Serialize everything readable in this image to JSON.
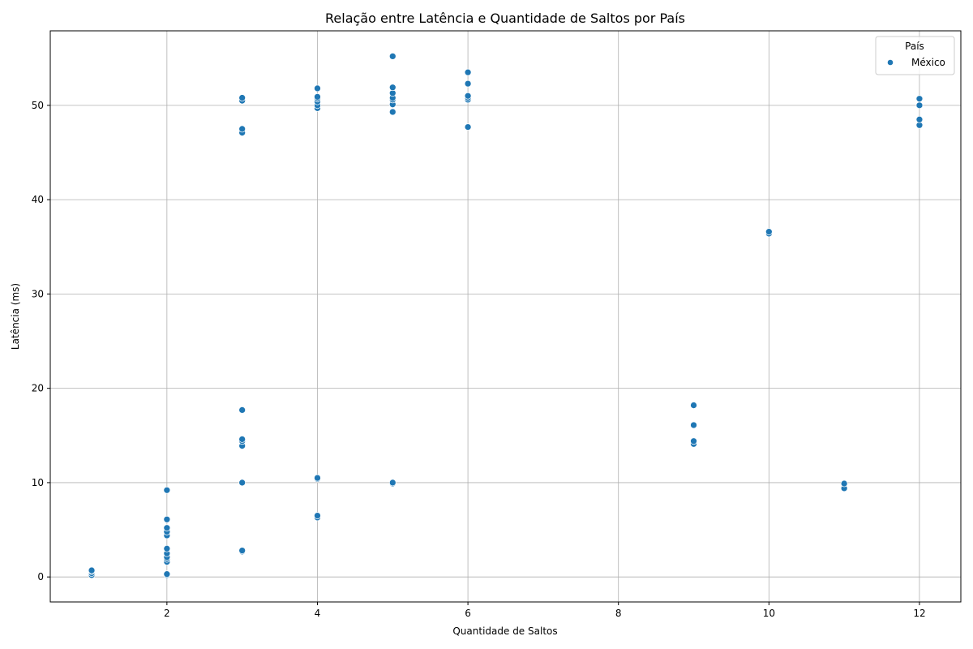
{
  "chart_data": {
    "type": "scatter",
    "title": "Relação entre Latência e Quantidade de Saltos por País",
    "xlabel": "Quantidade de Saltos",
    "ylabel": "Latência (ms)",
    "xlim": [
      0.45,
      12.55
    ],
    "ylim": [
      -2.65,
      57.9
    ],
    "xticks": [
      2,
      4,
      6,
      8,
      10,
      12
    ],
    "yticks": [
      0,
      10,
      20,
      30,
      40,
      50
    ],
    "grid": true,
    "legend": {
      "title": "País",
      "placement": "top-right"
    },
    "colors": {
      "point": "#1f77b4",
      "grid": "#b0b0b0"
    },
    "series": [
      {
        "name": "México",
        "points": [
          [
            1,
            0.2
          ],
          [
            1,
            0.4
          ],
          [
            1,
            0.6
          ],
          [
            1,
            0.7
          ],
          [
            2,
            0.2
          ],
          [
            2,
            0.3
          ],
          [
            2,
            1.6
          ],
          [
            2,
            1.9
          ],
          [
            2,
            2.1
          ],
          [
            2,
            2.5
          ],
          [
            2,
            3.0
          ],
          [
            2,
            4.4
          ],
          [
            2,
            4.8
          ],
          [
            2,
            5.2
          ],
          [
            2,
            6.1
          ],
          [
            2,
            9.2
          ],
          [
            3,
            2.7
          ],
          [
            3,
            2.8
          ],
          [
            3,
            10.0
          ],
          [
            3,
            13.9
          ],
          [
            3,
            14.4
          ],
          [
            3,
            14.6
          ],
          [
            3,
            17.7
          ],
          [
            3,
            47.1
          ],
          [
            3,
            47.5
          ],
          [
            3,
            50.5
          ],
          [
            3,
            50.8
          ],
          [
            4,
            6.3
          ],
          [
            4,
            6.5
          ],
          [
            4,
            10.4
          ],
          [
            4,
            10.5
          ],
          [
            4,
            49.7
          ],
          [
            4,
            50.0
          ],
          [
            4,
            50.4
          ],
          [
            4,
            50.7
          ],
          [
            4,
            50.9
          ],
          [
            4,
            51.8
          ],
          [
            5,
            9.9
          ],
          [
            5,
            10.0
          ],
          [
            5,
            49.3
          ],
          [
            5,
            50.1
          ],
          [
            5,
            50.6
          ],
          [
            5,
            50.8
          ],
          [
            5,
            51.3
          ],
          [
            5,
            51.9
          ],
          [
            5,
            55.2
          ],
          [
            6,
            47.7
          ],
          [
            6,
            50.6
          ],
          [
            6,
            50.8
          ],
          [
            6,
            51.0
          ],
          [
            6,
            52.3
          ],
          [
            6,
            53.5
          ],
          [
            9,
            14.1
          ],
          [
            9,
            14.4
          ],
          [
            9,
            16.1
          ],
          [
            9,
            18.2
          ],
          [
            10,
            36.4
          ],
          [
            10,
            36.6
          ],
          [
            11,
            9.4
          ],
          [
            11,
            9.9
          ],
          [
            12,
            47.9
          ],
          [
            12,
            48.5
          ],
          [
            12,
            50.0
          ],
          [
            12,
            50.7
          ]
        ]
      }
    ]
  }
}
